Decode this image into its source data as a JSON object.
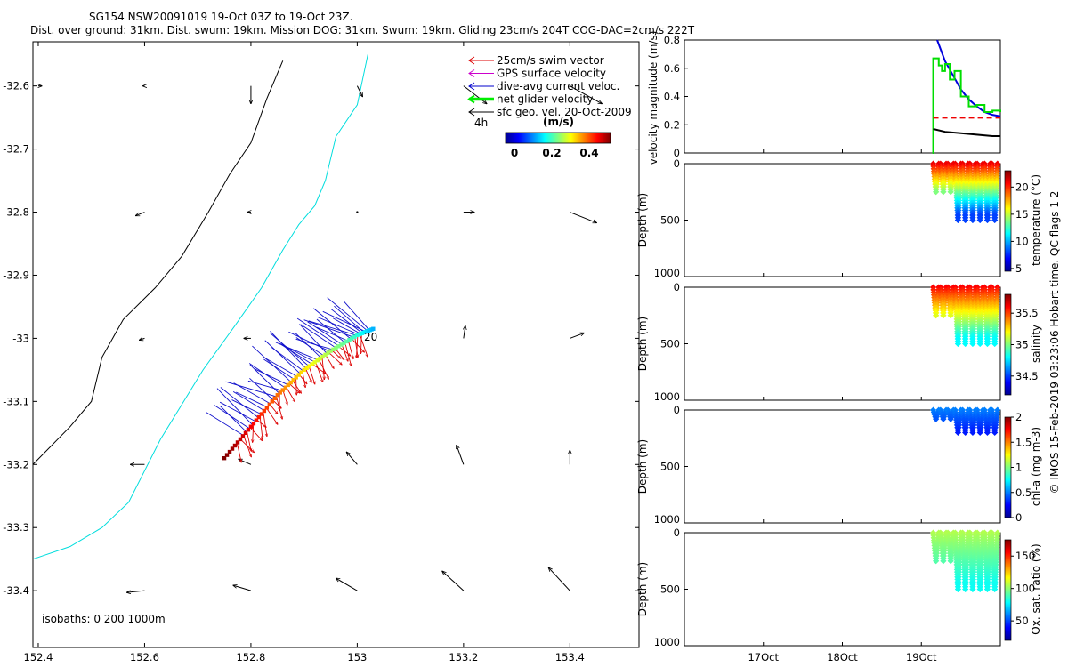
{
  "title": {
    "line1": "SG154 NSW20091019 19-Oct 03Z to 19-Oct 23Z.",
    "line2": "Dist. over ground: 31km. Dist. swum: 19km. Mission DOG: 31km. Swum: 19km. Gliding 23cm/s 204T COG-DAC=2cm/s 222T"
  },
  "map": {
    "legend": [
      {
        "label": "25cm/s swim vector",
        "color": "#dd0000"
      },
      {
        "label": "GPS surface velocity",
        "color": "#cc00cc"
      },
      {
        "label": "dive-avg current veloc.",
        "color": "#0000cc"
      },
      {
        "label": "net glider velocity",
        "color": "#00ee00"
      },
      {
        "label": "sfc geo. vel. 20-Oct-2009",
        "color": "#000000"
      }
    ],
    "colorbar_unit": "(m/s)",
    "colorbar_ticks": [
      "0",
      "0.2",
      "0.4"
    ],
    "time_tag": "4h",
    "end_label": "20",
    "isobaths_label": "isobaths: 0   200  1000m",
    "x_ticks": [
      "152.4",
      "152.6",
      "152.8",
      "153",
      "153.2",
      "153.4"
    ],
    "y_ticks": [
      "-32.6",
      "-32.7",
      "-32.8",
      "-32.9",
      "-33",
      "-33.1",
      "-33.2",
      "-33.3",
      "-33.4"
    ]
  },
  "velocity_panel": {
    "ylabel": "velocity magnitude (m/s)",
    "y_ticks": [
      "0",
      "0.2",
      "0.4",
      "0.6",
      "0.8"
    ]
  },
  "profile_panels": [
    {
      "ylabel": "Depth (m)",
      "cb_label": "temperature (°C)",
      "cb_ticks": [
        "5",
        "10",
        "15",
        "20"
      ],
      "depth_ticks": [
        "0",
        "500",
        "1000"
      ]
    },
    {
      "ylabel": "Depth (m)",
      "cb_label": "salinity",
      "cb_ticks": [
        "34.5",
        "35",
        "35.5"
      ],
      "depth_ticks": [
        "0",
        "500",
        "1000"
      ]
    },
    {
      "ylabel": "Depth (m)",
      "cb_label": "chl-a (mg m-3)",
      "cb_ticks": [
        "0",
        "0.5",
        "1",
        "1.5",
        "2"
      ],
      "depth_ticks": [
        "0",
        "500",
        "1000"
      ]
    },
    {
      "ylabel": "Depth (m)",
      "cb_label": "Ox. sat. ratio (%)",
      "cb_ticks": [
        "50",
        "100",
        "150"
      ],
      "depth_ticks": [
        "0",
        "500",
        "1000"
      ]
    }
  ],
  "time_ticks": [
    "17Oct",
    "18Oct",
    "19Oct"
  ],
  "side_note": "© IMOS 15-Feb-2019 03:23:06 Hobart time. QC flags 1  2",
  "chart_data": {
    "type": "scatter",
    "title": "SG154 NSW20091019 19-Oct 03Z to 19-Oct 23Z.",
    "map": {
      "xlim": [
        152.39,
        153.53
      ],
      "ylim": [
        -33.49,
        -32.53
      ],
      "glider_track": [
        [
          152.75,
          -33.19
        ],
        [
          152.8,
          -33.14
        ],
        [
          152.85,
          -33.09
        ],
        [
          152.9,
          -33.05
        ],
        [
          152.95,
          -33.02
        ],
        [
          153.0,
          -32.995
        ],
        [
          153.03,
          -32.985
        ]
      ],
      "coast_isobath_0": [
        [
          152.39,
          -33.2
        ],
        [
          152.46,
          -33.14
        ],
        [
          152.5,
          -33.1
        ],
        [
          152.52,
          -33.03
        ],
        [
          152.56,
          -32.97
        ],
        [
          152.62,
          -32.92
        ],
        [
          152.67,
          -32.87
        ],
        [
          152.72,
          -32.8
        ],
        [
          152.76,
          -32.74
        ],
        [
          152.8,
          -32.69
        ],
        [
          152.83,
          -32.62
        ],
        [
          152.86,
          -32.56
        ]
      ],
      "isobath_200": [
        [
          152.39,
          -33.35
        ],
        [
          152.46,
          -33.33
        ],
        [
          152.52,
          -33.3
        ],
        [
          152.57,
          -33.26
        ],
        [
          152.63,
          -33.16
        ],
        [
          152.71,
          -33.05
        ],
        [
          152.77,
          -32.98
        ],
        [
          152.82,
          -32.92
        ],
        [
          152.86,
          -32.86
        ],
        [
          152.89,
          -32.82
        ],
        [
          152.92,
          -32.79
        ],
        [
          152.94,
          -32.75
        ],
        [
          152.96,
          -32.68
        ],
        [
          153.0,
          -32.63
        ],
        [
          153.02,
          -32.55
        ]
      ],
      "geo_vectors": [
        {
          "lon": 152.4,
          "lat": -32.6,
          "u": 0.02,
          "v": 0.0
        },
        {
          "lon": 152.6,
          "lat": -32.6,
          "u": -0.01,
          "v": 0.0
        },
        {
          "lon": 152.8,
          "lat": -32.6,
          "u": 0.0,
          "v": -0.1
        },
        {
          "lon": 153.0,
          "lat": -32.6,
          "u": 0.03,
          "v": -0.06
        },
        {
          "lon": 153.2,
          "lat": -32.6,
          "u": 0.13,
          "v": -0.1
        },
        {
          "lon": 153.4,
          "lat": -32.6,
          "u": 0.18,
          "v": -0.1
        },
        {
          "lon": 152.6,
          "lat": -32.8,
          "u": -0.05,
          "v": -0.02
        },
        {
          "lon": 152.8,
          "lat": -32.8,
          "u": -0.02,
          "v": 0.0
        },
        {
          "lon": 153.0,
          "lat": -32.8,
          "u": 0.0,
          "v": 0.0
        },
        {
          "lon": 153.2,
          "lat": -32.8,
          "u": 0.06,
          "v": 0.0
        },
        {
          "lon": 153.4,
          "lat": -32.8,
          "u": 0.15,
          "v": -0.06
        },
        {
          "lon": 152.6,
          "lat": -33.0,
          "u": -0.03,
          "v": -0.01
        },
        {
          "lon": 152.8,
          "lat": -33.0,
          "u": -0.04,
          "v": 0.0
        },
        {
          "lon": 153.2,
          "lat": -33.0,
          "u": 0.01,
          "v": 0.07
        },
        {
          "lon": 153.4,
          "lat": -33.0,
          "u": 0.08,
          "v": 0.03
        },
        {
          "lon": 152.6,
          "lat": -33.2,
          "u": -0.08,
          "v": 0.0
        },
        {
          "lon": 152.8,
          "lat": -33.2,
          "u": -0.07,
          "v": 0.03
        },
        {
          "lon": 153.0,
          "lat": -33.2,
          "u": -0.06,
          "v": 0.07
        },
        {
          "lon": 153.2,
          "lat": -33.2,
          "u": -0.04,
          "v": 0.11
        },
        {
          "lon": 153.4,
          "lat": -33.2,
          "u": 0.0,
          "v": 0.08
        },
        {
          "lon": 152.6,
          "lat": -33.4,
          "u": -0.1,
          "v": -0.01
        },
        {
          "lon": 152.8,
          "lat": -33.4,
          "u": -0.1,
          "v": 0.03
        },
        {
          "lon": 153.0,
          "lat": -33.4,
          "u": -0.12,
          "v": 0.07
        },
        {
          "lon": 153.2,
          "lat": -33.4,
          "u": -0.12,
          "v": 0.11
        },
        {
          "lon": 153.4,
          "lat": -33.4,
          "u": -0.12,
          "v": 0.13
        }
      ]
    },
    "velocity_series": {
      "xlim": [
        16.0,
        20.0
      ],
      "ylim": [
        0,
        0.8
      ],
      "series": [
        {
          "name": "blue",
          "color": "#0000dd",
          "x": [
            19.2,
            19.3,
            19.4,
            19.5,
            19.6,
            19.7,
            19.8,
            19.9,
            20.0
          ],
          "y": [
            0.82,
            0.65,
            0.55,
            0.45,
            0.38,
            0.33,
            0.29,
            0.27,
            0.26
          ]
        },
        {
          "name": "green",
          "color": "#00dd00",
          "x": [
            19.14,
            19.15,
            19.22,
            19.26,
            19.3,
            19.36,
            19.42,
            19.5,
            19.6,
            19.7,
            19.8,
            19.9,
            20.0
          ],
          "y": [
            0.0,
            0.67,
            0.62,
            0.58,
            0.63,
            0.52,
            0.58,
            0.4,
            0.33,
            0.34,
            0.29,
            0.3,
            0.29
          ]
        },
        {
          "name": "red-dashed",
          "color": "#ee0000",
          "x": [
            19.15,
            20.0
          ],
          "y": [
            0.25,
            0.25
          ]
        },
        {
          "name": "black",
          "color": "#000000",
          "x": [
            19.15,
            19.3,
            19.5,
            19.7,
            19.9,
            20.0
          ],
          "y": [
            0.17,
            0.15,
            0.14,
            0.13,
            0.12,
            0.12
          ]
        }
      ]
    },
    "profiles": {
      "xlim": [
        16.0,
        20.0
      ],
      "ylim": [
        1000,
        0
      ],
      "temperature": {
        "clim": [
          4.5,
          23
        ],
        "surface": 21,
        "deep": 8
      },
      "salinity": {
        "clim": [
          34.2,
          35.8
        ],
        "surface": 35.6,
        "deep": 34.8
      },
      "chl_a": {
        "clim": [
          0,
          2
        ],
        "surface": 0.5,
        "deep": 0.05
      },
      "ox_sat": {
        "clim": [
          20,
          175
        ],
        "surface": 105,
        "deep": 80
      }
    }
  }
}
